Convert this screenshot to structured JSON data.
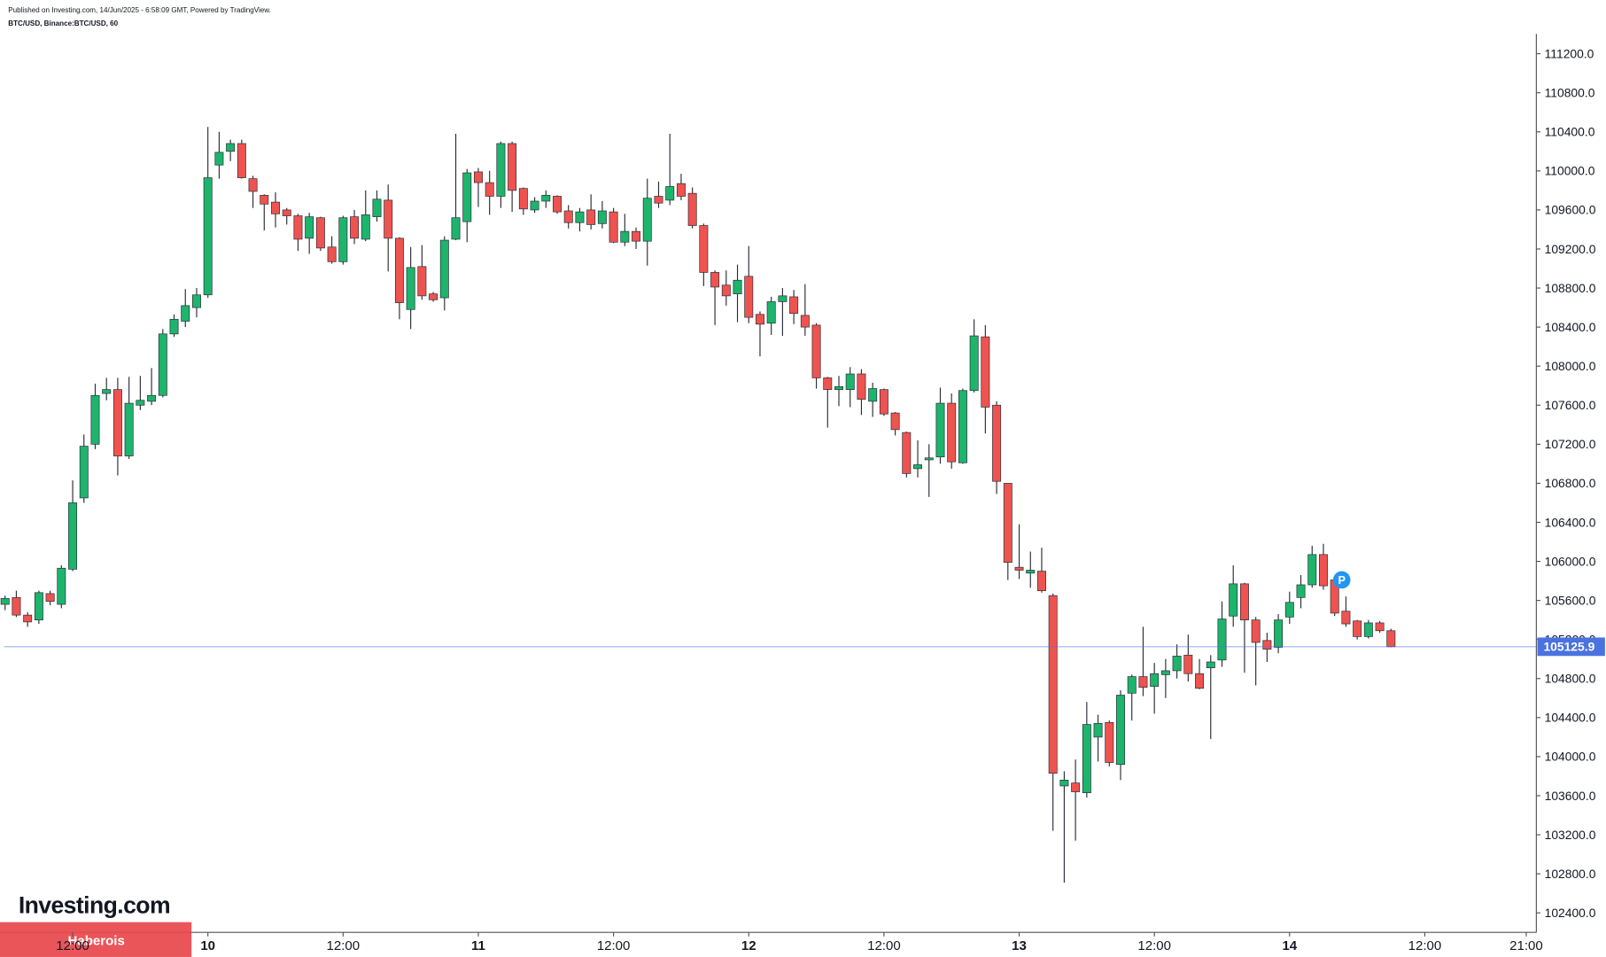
{
  "header": {
    "published": "Published on Investing.com, 14/Jun/2025 - 6:58:09 GMT, Powered by TradingView.",
    "symbol": "BTC/USD, Binance:BTC/USD, 60"
  },
  "logo": "Investing.com",
  "watermark": "Haberois",
  "chart_data": {
    "type": "candlestick",
    "up_color": "#1db46c",
    "down_color": "#ef5350",
    "grid": false,
    "xlim": [
      -0.45,
      135.9
    ],
    "xticks": [
      {
        "value": 6,
        "label": "12:00"
      },
      {
        "value": 18,
        "label": "10"
      },
      {
        "value": 30,
        "label": "12:00"
      },
      {
        "value": 42,
        "label": "11"
      },
      {
        "value": 54,
        "label": "12:00"
      },
      {
        "value": 66,
        "label": "12"
      },
      {
        "value": 78,
        "label": "12:00"
      },
      {
        "value": 90,
        "label": "13"
      },
      {
        "value": 102,
        "label": "12:00"
      },
      {
        "value": 114,
        "label": "14"
      },
      {
        "value": 126,
        "label": "12:00"
      },
      {
        "value": 135,
        "label": "21:00"
      }
    ],
    "ylim": [
      102200,
      111750
    ],
    "yticks": [
      {
        "value": 102400,
        "label": "102400.0"
      },
      {
        "value": 102800,
        "label": "102800.0"
      },
      {
        "value": 103200,
        "label": "103200.0"
      },
      {
        "value": 103600,
        "label": "103600.0"
      },
      {
        "value": 104000,
        "label": "104000.0"
      },
      {
        "value": 104400,
        "label": "104400.0"
      },
      {
        "value": 104800,
        "label": "104800.0"
      },
      {
        "value": 105200,
        "label": "105200.0"
      },
      {
        "value": 105600,
        "label": "105600.0"
      },
      {
        "value": 106000,
        "label": "106000.0"
      },
      {
        "value": 106400,
        "label": "106400.0"
      },
      {
        "value": 106800,
        "label": "106800.0"
      },
      {
        "value": 107200,
        "label": "107200.0"
      },
      {
        "value": 107600,
        "label": "107600.0"
      },
      {
        "value": 108000,
        "label": "108000.0"
      },
      {
        "value": 108400,
        "label": "108400.0"
      },
      {
        "value": 108800,
        "label": "108800.0"
      },
      {
        "value": 109200,
        "label": "109200.0"
      },
      {
        "value": 109600,
        "label": "109600.0"
      },
      {
        "value": 110000,
        "label": "110000.0"
      },
      {
        "value": 110400,
        "label": "110400.0"
      },
      {
        "value": 110800,
        "label": "110800.0"
      },
      {
        "value": 111200,
        "label": "111200.0"
      }
    ],
    "last_price": {
      "value": 105125.9,
      "label": "105125.9",
      "color": "#4a72e0"
    },
    "annotation": "P",
    "open": [
      105560,
      105630,
      105450,
      105400,
      105670,
      105560,
      105920,
      106650,
      107200,
      107720,
      107760,
      107080,
      107600,
      107640,
      107700,
      108330,
      108460,
      108600,
      108730,
      110060,
      110200,
      110280,
      109920,
      109750,
      109680,
      109600,
      109540,
      109310,
      109520,
      109220,
      109070,
      109530,
      109300,
      109530,
      109700,
      109310,
      108580,
      109020,
      108740,
      108700,
      109300,
      109480,
      109990,
      109880,
      109740,
      110280,
      109820,
      109600,
      109690,
      109740,
      109590,
      109470,
      109600,
      109460,
      109580,
      109270,
      109380,
      109280,
      109740,
      109700,
      109870,
      109770,
      109440,
      108960,
      108830,
      108740,
      108920,
      108530,
      108440,
      108660,
      108710,
      108520,
      108420,
      107880,
      107760,
      107760,
      107920,
      107640,
      107760,
      107520,
      107320,
      106950,
      107040,
      107070,
      107620,
      107010,
      107750,
      108300,
      107600,
      106800,
      105940,
      105880,
      105900,
      105650,
      103700,
      103730,
      103630,
      104200,
      104350,
      103920,
      104650,
      104820,
      104720,
      104840,
      104880,
      105040,
      104850,
      104910,
      104990,
      105440,
      105770,
      105400,
      105190,
      105120,
      105430,
      105630,
      105760,
      106070,
      105810,
      105490,
      105390,
      105230,
      105370,
      105290
    ],
    "high": [
      105650,
      105700,
      105480,
      105700,
      105700,
      105960,
      106830,
      107300,
      107820,
      107880,
      107880,
      107890,
      107900,
      107980,
      108380,
      108530,
      108790,
      108800,
      110450,
      110400,
      110320,
      110320,
      109950,
      109760,
      109780,
      109620,
      109560,
      109570,
      109530,
      109330,
      109540,
      109600,
      109800,
      109800,
      109860,
      109320,
      109220,
      109240,
      108760,
      109330,
      110380,
      110020,
      110030,
      110000,
      110300,
      110300,
      109830,
      109730,
      109800,
      109750,
      109650,
      109620,
      109760,
      109690,
      109620,
      109560,
      109420,
      109920,
      109890,
      110380,
      109970,
      109830,
      109460,
      108980,
      108980,
      109040,
      109230,
      108560,
      108710,
      108800,
      108780,
      108840,
      108440,
      107890,
      107900,
      107990,
      107970,
      107830,
      107770,
      107530,
      107330,
      107240,
      107200,
      107780,
      107720,
      107770,
      108480,
      108420,
      107640,
      106800,
      106380,
      106100,
      106140,
      105670,
      103850,
      103970,
      104560,
      104430,
      104370,
      104680,
      104840,
      105330,
      104960,
      105000,
      105150,
      105250,
      105000,
      105040,
      105590,
      105960,
      105780,
      105430,
      105270,
      105460,
      105690,
      105860,
      106160,
      106180,
      105830,
      105640,
      105400,
      105400,
      105390,
      105310
    ],
    "low": [
      105500,
      105430,
      105330,
      105360,
      105550,
      105520,
      105900,
      106600,
      107150,
      107650,
      106880,
      107050,
      107550,
      107600,
      107680,
      108300,
      108400,
      108500,
      108700,
      109920,
      110100,
      109920,
      109620,
      109390,
      109420,
      109450,
      109180,
      109150,
      109180,
      109050,
      109040,
      109250,
      109280,
      109480,
      108970,
      108480,
      108380,
      108680,
      108660,
      108570,
      109290,
      109270,
      109630,
      109550,
      109620,
      109580,
      109550,
      109570,
      109620,
      109560,
      109410,
      109380,
      109400,
      109410,
      109260,
      109230,
      109200,
      109030,
      109620,
      109650,
      109700,
      109410,
      108820,
      108420,
      108620,
      108450,
      108440,
      108100,
      108320,
      108310,
      108430,
      108310,
      107770,
      107370,
      107590,
      107580,
      107500,
      107480,
      107490,
      107290,
      106860,
      106860,
      106660,
      107000,
      106950,
      107000,
      107730,
      107310,
      106690,
      105810,
      105820,
      105730,
      105680,
      103240,
      102710,
      103140,
      103580,
      103950,
      103900,
      103760,
      104370,
      104620,
      104440,
      104600,
      104800,
      104770,
      104690,
      104180,
      104920,
      105330,
      104860,
      104730,
      104970,
      105060,
      105360,
      105520,
      105730,
      105710,
      105440,
      105330,
      105200,
      105210,
      105270,
      105120
    ],
    "close": [
      105620,
      105450,
      105380,
      105680,
      105590,
      105930,
      106600,
      107180,
      107700,
      107760,
      107080,
      107620,
      107650,
      107700,
      108330,
      108480,
      108620,
      108730,
      109930,
      110190,
      110280,
      109930,
      109790,
      109660,
      109560,
      109540,
      109300,
      109530,
      109210,
      109070,
      109520,
      109310,
      109550,
      109710,
      109310,
      108650,
      109010,
      108720,
      108680,
      109290,
      109520,
      109980,
      109880,
      109740,
      110280,
      109800,
      109610,
      109690,
      109750,
      109580,
      109470,
      109580,
      109450,
      109590,
      109270,
      109380,
      109280,
      109720,
      109670,
      109840,
      109740,
      109440,
      108960,
      108810,
      108720,
      108880,
      108500,
      108430,
      108660,
      108720,
      108540,
      108400,
      107880,
      107760,
      107790,
      107920,
      107660,
      107770,
      107510,
      107350,
      106900,
      106990,
      107060,
      107620,
      107020,
      107750,
      108310,
      107580,
      106820,
      105990,
      105910,
      105910,
      105700,
      103830,
      103760,
      103640,
      104330,
      104340,
      103940,
      104630,
      104820,
      104710,
      104850,
      104880,
      105030,
      104850,
      104700,
      104970,
      105410,
      105770,
      105400,
      105170,
      105100,
      105400,
      105580,
      105760,
      106070,
      105750,
      105470,
      105360,
      105230,
      105370,
      105290,
      105125.9
    ]
  }
}
